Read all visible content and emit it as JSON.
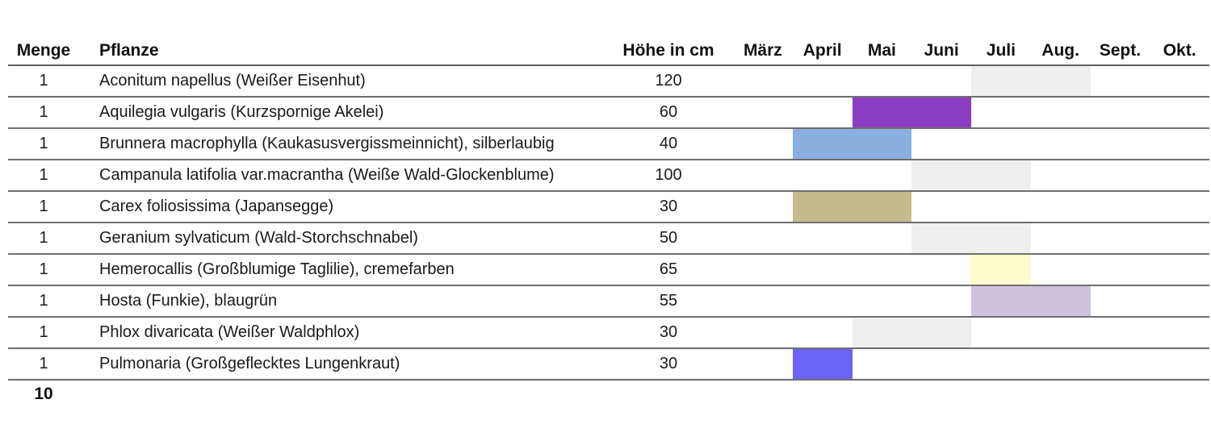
{
  "chart_data": {
    "type": "table",
    "title": "",
    "columns": {
      "menge": "Menge",
      "pflanze": "Pflanze",
      "hoehe": "Höhe in cm",
      "months": [
        "März",
        "April",
        "Mai",
        "Juni",
        "Juli",
        "Aug.",
        "Sept.",
        "Okt."
      ]
    },
    "rows": [
      {
        "menge": "1",
        "pflanze": "Aconitum napellus (Weißer Eisenhut)",
        "hoehe_cm": "120",
        "bloom": {
          "months": [
            "Juli",
            "Aug."
          ],
          "start_index": 4,
          "span": 2,
          "color": "#efefef"
        }
      },
      {
        "menge": "1",
        "pflanze": "Aquilegia vulgaris (Kurzspornige Akelei)",
        "hoehe_cm": "60",
        "bloom": {
          "months": [
            "Mai",
            "Juni"
          ],
          "start_index": 2,
          "span": 2,
          "color": "#8a3dc3"
        }
      },
      {
        "menge": "1",
        "pflanze": "Brunnera macrophylla (Kaukasusvergissmeinnicht), silberlaubig",
        "hoehe_cm": "40",
        "bloom": {
          "months": [
            "April",
            "Mai"
          ],
          "start_index": 1,
          "span": 2,
          "color": "#8bb0e0"
        }
      },
      {
        "menge": "1",
        "pflanze": "Campanula latifolia var.macrantha (Weiße Wald-Glockenblume)",
        "hoehe_cm": "100",
        "bloom": {
          "months": [
            "Juni",
            "Juli"
          ],
          "start_index": 3,
          "span": 2,
          "color": "#efefef"
        }
      },
      {
        "menge": "1",
        "pflanze": "Carex foliosissima (Japansegge)",
        "hoehe_cm": "30",
        "bloom": {
          "months": [
            "April",
            "Mai"
          ],
          "start_index": 1,
          "span": 2,
          "color": "#c4bb8e"
        }
      },
      {
        "menge": "1",
        "pflanze": "Geranium sylvaticum (Wald-Storchschnabel)",
        "hoehe_cm": "50",
        "bloom": {
          "months": [
            "Juni",
            "Juli"
          ],
          "start_index": 3,
          "span": 2,
          "color": "#efefef"
        }
      },
      {
        "menge": "1",
        "pflanze": "Hemerocallis (Großblumige Taglilie), cremefarben",
        "hoehe_cm": "65",
        "bloom": {
          "months": [
            "Juli"
          ],
          "start_index": 4,
          "span": 1,
          "color": "#fdfdce"
        }
      },
      {
        "menge": "1",
        "pflanze": "Hosta (Funkie), blaugrün",
        "hoehe_cm": "55",
        "bloom": {
          "months": [
            "Juli",
            "Aug."
          ],
          "start_index": 4,
          "span": 2,
          "color": "#cec3de"
        }
      },
      {
        "menge": "1",
        "pflanze": "Phlox divaricata (Weißer Waldphlox)",
        "hoehe_cm": "30",
        "bloom": {
          "months": [
            "Mai",
            "Juni"
          ],
          "start_index": 2,
          "span": 2,
          "color": "#efefef"
        }
      },
      {
        "menge": "1",
        "pflanze": "Pulmonaria (Großgeflecktes Lungenkraut)",
        "hoehe_cm": "30",
        "bloom": {
          "months": [
            "April"
          ],
          "start_index": 1,
          "span": 1,
          "color": "#6c63f4"
        }
      }
    ],
    "total_menge": "10",
    "layout": {
      "legend": "none",
      "grid": "horizontal-row-lines",
      "row_line_color": "#6e6e6e",
      "bar_track_months": 8
    }
  }
}
